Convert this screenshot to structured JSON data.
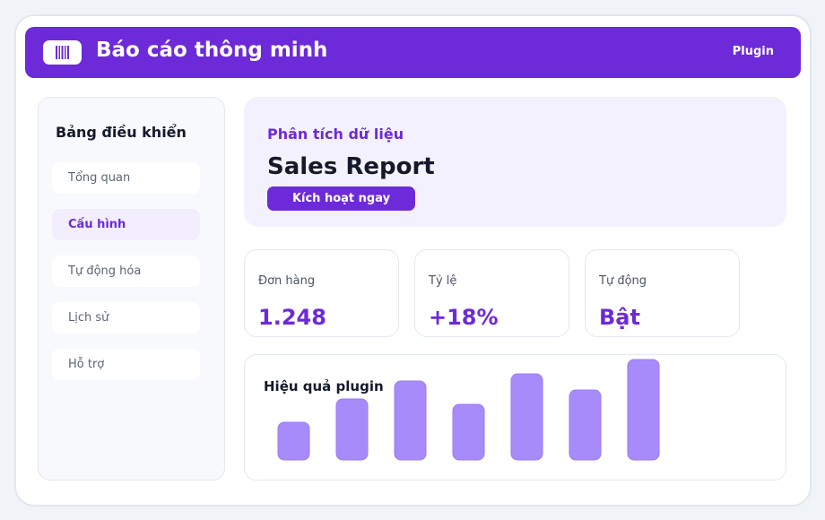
{
  "app": {
    "title": "Báo cáo thông minh",
    "plugin_link": "Plugin",
    "logo_icon": "barcode-icon"
  },
  "sidebar": {
    "title": "Bảng điều khiển",
    "items": [
      {
        "label": "Tổng quan",
        "active": false
      },
      {
        "label": "Cấu hình",
        "active": true
      },
      {
        "label": "Tự động hóa",
        "active": false
      },
      {
        "label": "Lịch sử",
        "active": false
      },
      {
        "label": "Hỗ trợ",
        "active": false
      }
    ]
  },
  "hero": {
    "eyebrow": "Phân tích dữ liệu",
    "title": "Sales Report",
    "button_label": "Kích hoạt ngay"
  },
  "stats": [
    {
      "label": "Đơn hàng",
      "value": "1.248"
    },
    {
      "label": "Tỷ lệ",
      "value": "+18%"
    },
    {
      "label": "Tự động",
      "value": "Bật"
    }
  ],
  "chart_panel": {
    "title": "Hiệu quả plugin"
  },
  "chart_data": {
    "type": "bar",
    "categories": [
      "",
      "",
      "",
      "",
      "",
      "",
      ""
    ],
    "values": [
      42,
      68,
      88,
      62,
      96,
      78,
      112
    ],
    "ylim": [
      0,
      112
    ],
    "grid": false,
    "bar_color": "#a88bfa"
  },
  "colors": {
    "accent": "#6d2ad8",
    "accent_soft": "#f4f1fe",
    "bar": "#a88bfa",
    "text_dark": "#141a2b"
  }
}
